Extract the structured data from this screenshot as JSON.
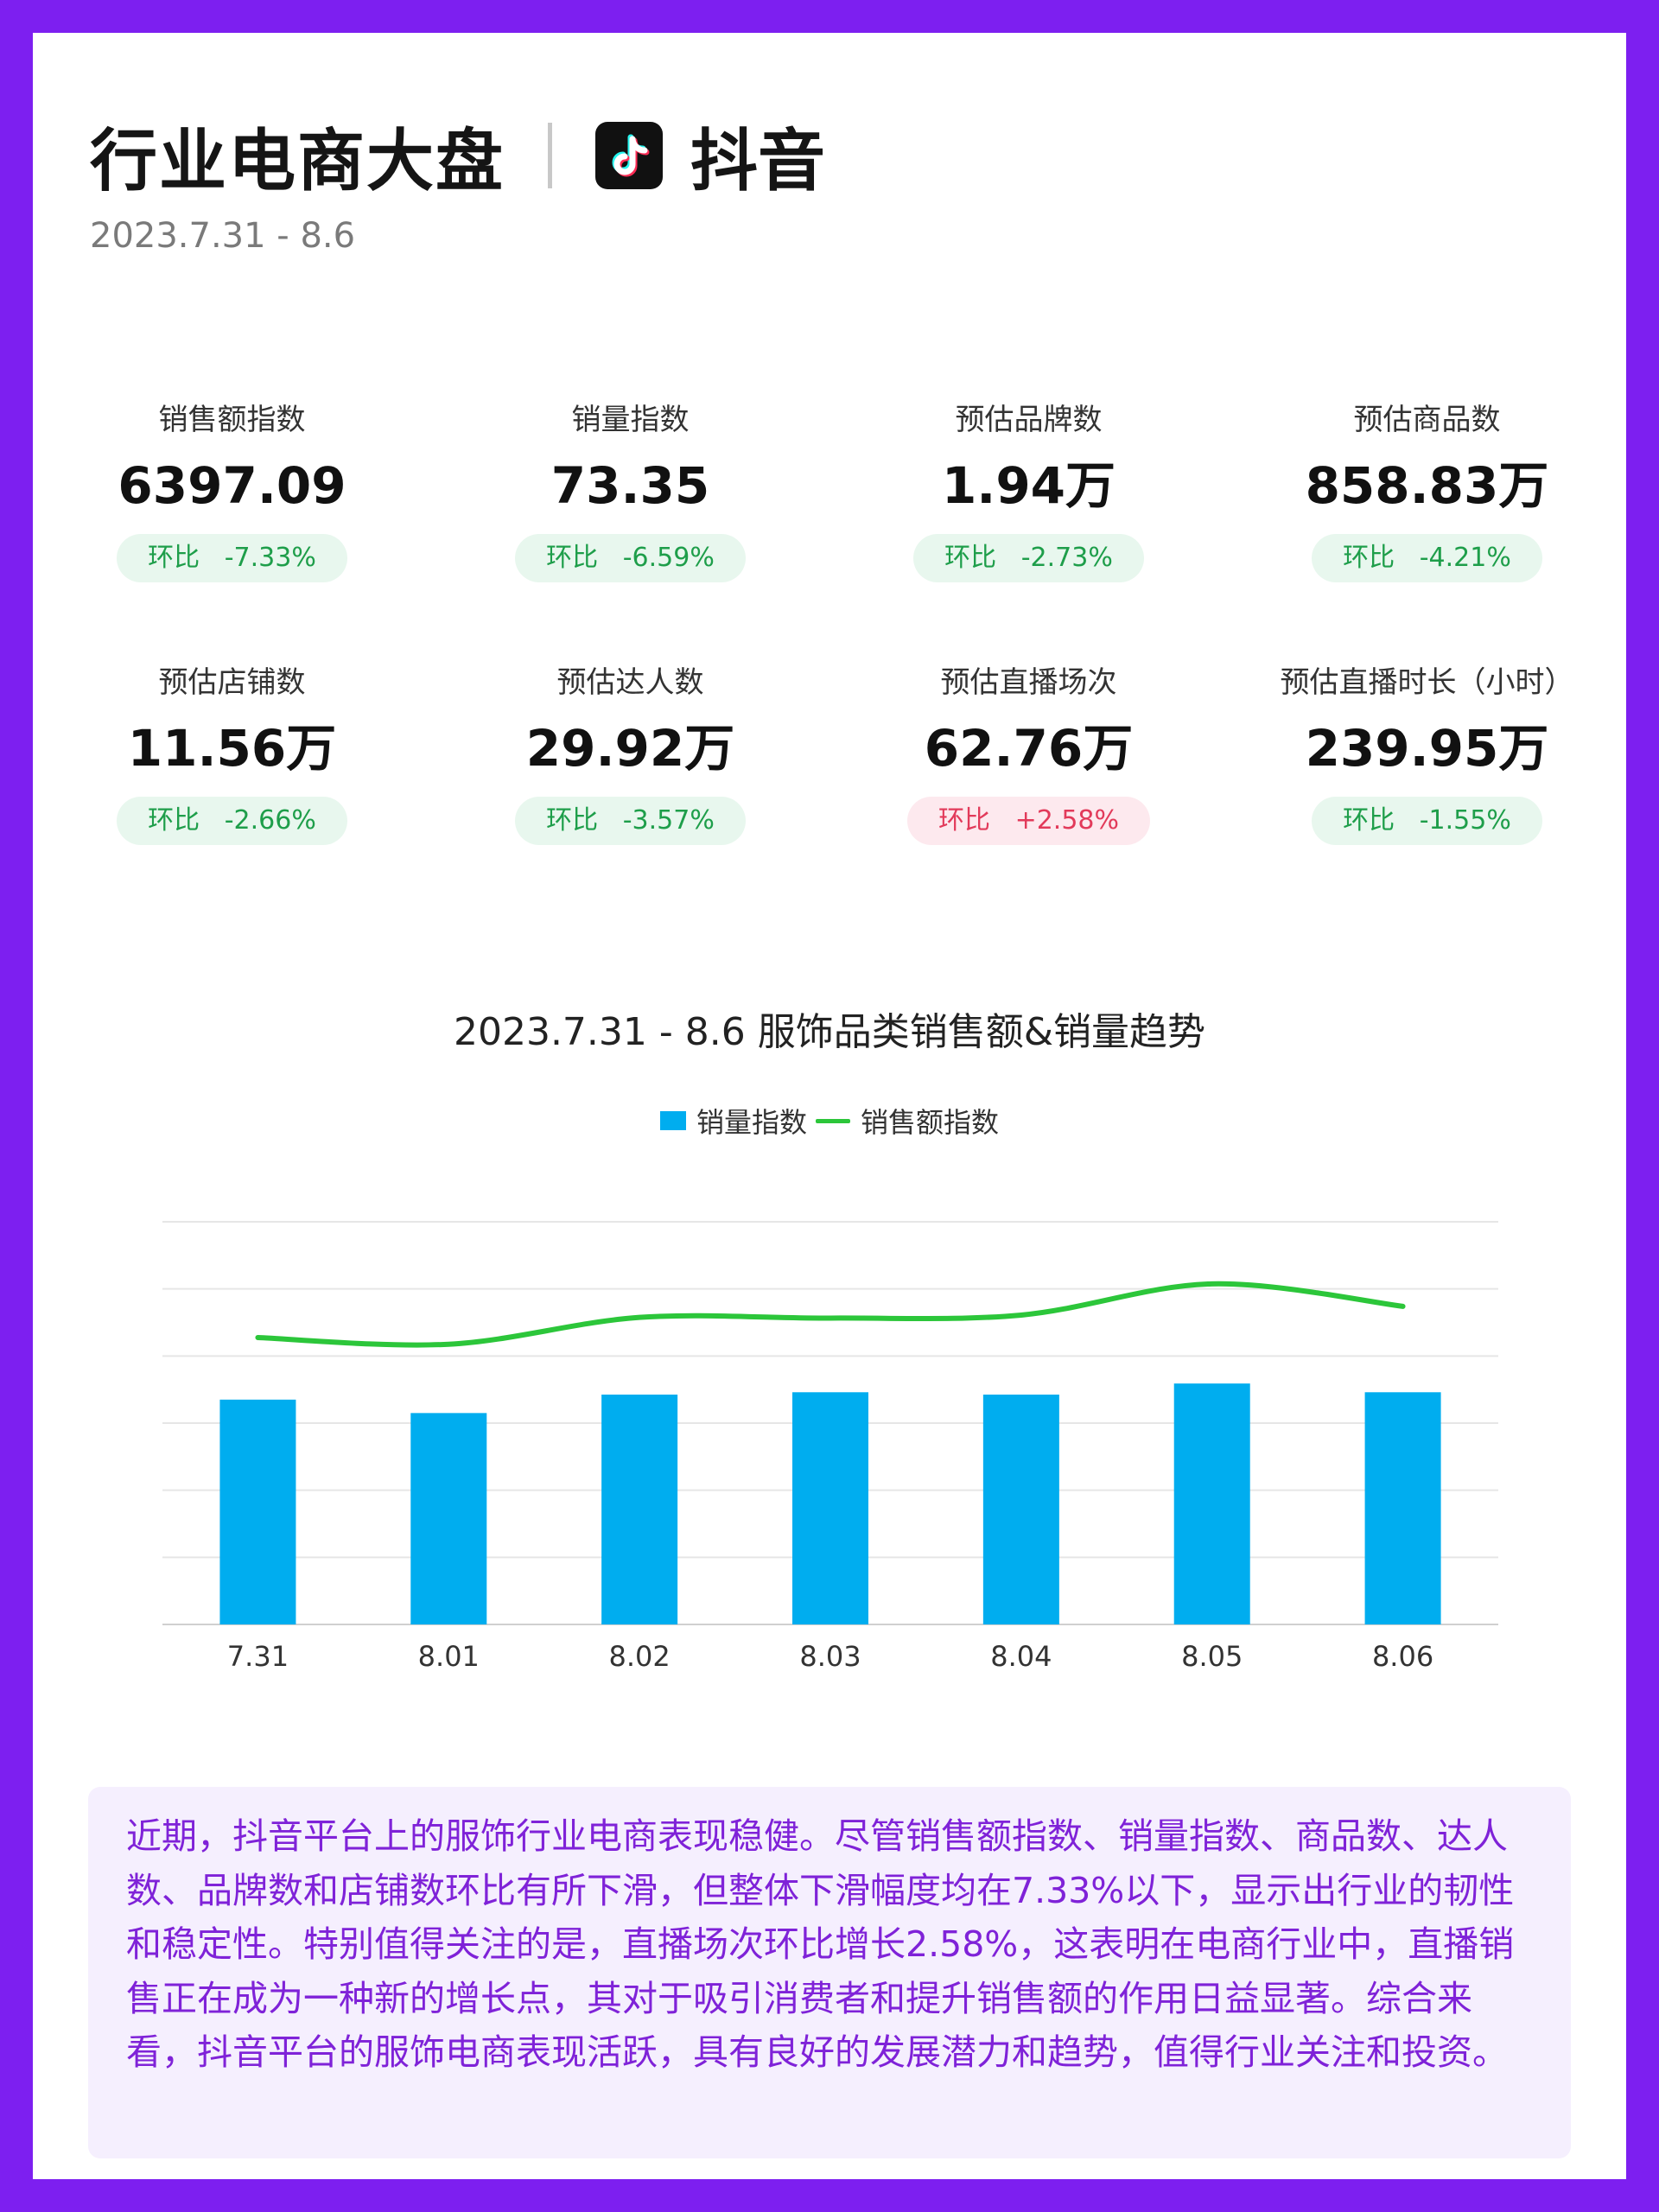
{
  "header": {
    "title": "行业电商大盘",
    "brand": "抖音",
    "date_range": "2023.7.31 - 8.6"
  },
  "metrics": [
    {
      "label": "销售额指数",
      "value": "6397.09",
      "change": "环比   -7.33%",
      "direction": "down"
    },
    {
      "label": "销量指数",
      "value": "73.35",
      "change": "环比   -6.59%",
      "direction": "down"
    },
    {
      "label": "预估品牌数",
      "value": "1.94万",
      "change": "环比   -2.73%",
      "direction": "down"
    },
    {
      "label": "预估商品数",
      "value": "858.83万",
      "change": "环比   -4.21%",
      "direction": "down"
    },
    {
      "label": "预估店铺数",
      "value": "11.56万",
      "change": "环比   -2.66%",
      "direction": "down"
    },
    {
      "label": "预估达人数",
      "value": "29.92万",
      "change": "环比   -3.57%",
      "direction": "down"
    },
    {
      "label": "预估直播场次",
      "value": "62.76万",
      "change": "环比   +2.58%",
      "direction": "up"
    },
    {
      "label": "预估直播时长（小时）",
      "value": "239.95万",
      "change": "环比   -1.55%",
      "direction": "down"
    }
  ],
  "colors": {
    "background": "#7d1ff0",
    "bar": "#00adef",
    "line": "#2cc63a",
    "negative_badge_text": "#1e9e4a",
    "positive_badge_text": "#e23a5a",
    "summary_text": "#7f22d8"
  },
  "chart_data": {
    "type": "bar",
    "title": "2023.7.31 - 8.6 服饰品类销售额&销量趋势",
    "categories": [
      "7.31",
      "8.01",
      "8.02",
      "8.03",
      "8.04",
      "8.05",
      "8.06"
    ],
    "series": [
      {
        "name": "销量指数",
        "type": "bar",
        "values": [
          67,
          63,
          68.5,
          69.2,
          68.5,
          71.8,
          69.2
        ]
      },
      {
        "name": "销售额指数",
        "type": "line",
        "values": [
          85.5,
          83.5,
          91.5,
          91.3,
          92.2,
          101.5,
          94.8
        ]
      }
    ],
    "ylim": [
      0,
      120
    ],
    "y_axis_labels_visible": false,
    "grid": true,
    "legend_position": "top-center"
  },
  "summary": {
    "text": "近期，抖音平台上的服饰行业电商表现稳健。尽管销售额指数、销量指数、商品数、达人数、品牌数和店铺数环比有所下滑，但整体下滑幅度均在7.33%以下，显示出行业的韧性和稳定性。特别值得关注的是，直播场次环比增长2.58%，这表明在电商行业中，直播销售正在成为一种新的增长点，其对于吸引消费者和提升销售额的作用日益显著。综合来看，抖音平台的服饰电商表现活跃，具有良好的发展潜力和趋势，值得行业关注和投资。"
  }
}
